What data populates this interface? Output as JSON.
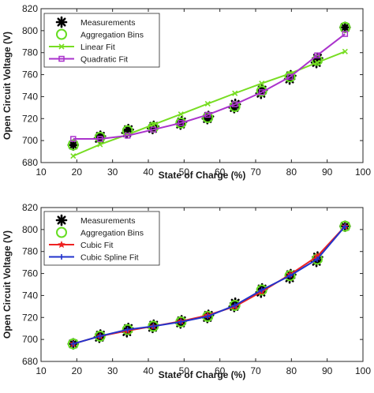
{
  "chart_data": [
    {
      "type": "line",
      "xlabel": "State of Charge (%)",
      "ylabel": "Open Circuit Voltage (V)",
      "xlim": [
        10,
        100
      ],
      "ylim": [
        680,
        820
      ],
      "xticks": [
        "10",
        "20",
        "30",
        "40",
        "50",
        "60",
        "70",
        "80",
        "90",
        "100"
      ],
      "yticks": [
        "680",
        "700",
        "720",
        "740",
        "760",
        "780",
        "800",
        "820"
      ],
      "grid": false,
      "legend": "top-left",
      "series": [
        {
          "name": "Measurements",
          "kind": "scatter",
          "marker": "asterisk",
          "color": "#000000",
          "x": [
            19,
            26.3,
            26.6,
            34,
            34.4,
            41.2,
            41.5,
            49,
            49.3,
            56.5,
            56.8,
            64,
            64.3,
            71.5,
            71.8,
            79.5,
            79.8,
            87,
            87.3,
            95
          ],
          "y": [
            696,
            702,
            704,
            707,
            710,
            711,
            713,
            715,
            717,
            720,
            722,
            730,
            733,
            743,
            746,
            756,
            759,
            771,
            775,
            803
          ]
        },
        {
          "name": "Aggregation Bins",
          "kind": "scatter",
          "marker": "circle",
          "color": "#66dd22",
          "x": [
            19,
            26.5,
            34.2,
            41.4,
            49.1,
            56.6,
            64.2,
            71.7,
            79.6,
            87.2,
            95
          ],
          "y": [
            696,
            703,
            709,
            712,
            716,
            721,
            731,
            745,
            758,
            773,
            803
          ]
        },
        {
          "name": "Linear Fit",
          "kind": "line",
          "marker": "x",
          "color": "#77dd22",
          "x": [
            19,
            26.5,
            34.2,
            41.4,
            49.1,
            56.6,
            64.2,
            71.7,
            79.6,
            87.2,
            95
          ],
          "y": [
            686,
            696.5,
            705.5,
            714.5,
            724,
            733.5,
            743,
            752,
            761,
            771,
            781
          ]
        },
        {
          "name": "Quadratic Fit",
          "kind": "line",
          "marker": "square",
          "color": "#aa33cc",
          "x": [
            19,
            26.5,
            34.2,
            41.4,
            49.1,
            56.6,
            64.2,
            71.7,
            79.6,
            87.2,
            95
          ],
          "y": [
            701.5,
            701.5,
            704.5,
            710,
            716,
            723.5,
            733,
            744,
            758,
            777.5,
            797
          ]
        }
      ]
    },
    {
      "type": "line",
      "xlabel": "State of Charge (%)",
      "ylabel": "Open Circuit Voltage (V)",
      "xlim": [
        10,
        100
      ],
      "ylim": [
        680,
        820
      ],
      "xticks": [
        "10",
        "20",
        "30",
        "40",
        "50",
        "60",
        "70",
        "80",
        "90",
        "100"
      ],
      "yticks": [
        "680",
        "700",
        "720",
        "740",
        "760",
        "780",
        "800",
        "820"
      ],
      "grid": false,
      "legend": "top-left",
      "series": [
        {
          "name": "Measurements",
          "kind": "scatter",
          "marker": "asterisk",
          "color": "#000000",
          "x": [
            19,
            26.3,
            26.6,
            34,
            34.4,
            41.2,
            41.5,
            49,
            49.3,
            56.5,
            56.8,
            64,
            64.3,
            71.5,
            71.8,
            79.5,
            79.8,
            87,
            87.3,
            95
          ],
          "y": [
            696,
            702,
            704,
            707,
            710,
            711,
            713,
            715,
            717,
            720,
            722,
            730,
            733,
            743,
            746,
            756,
            759,
            771,
            775,
            803
          ]
        },
        {
          "name": "Aggregation Bins",
          "kind": "scatter",
          "marker": "circle",
          "color": "#66dd22",
          "x": [
            19,
            26.5,
            34.2,
            41.4,
            49.1,
            56.6,
            64.2,
            71.7,
            79.6,
            87.2,
            95
          ],
          "y": [
            696,
            703,
            709,
            712,
            716,
            721,
            731,
            745,
            758,
            773,
            803
          ]
        },
        {
          "name": "Cubic Fit",
          "kind": "line",
          "marker": "star",
          "color": "#ee2222",
          "x": [
            19,
            26.5,
            34.2,
            41.4,
            49.1,
            56.6,
            64.2,
            71.7,
            79.6,
            87.2,
            95
          ],
          "y": [
            696,
            703,
            708,
            712,
            716.5,
            722,
            730,
            743.5,
            759,
            775.5,
            803
          ]
        },
        {
          "name": "Cubic Spline Fit",
          "kind": "line",
          "marker": "plus",
          "color": "#2233cc",
          "x": [
            19,
            26.5,
            34.2,
            41.4,
            49.1,
            56.6,
            64.2,
            71.7,
            79.6,
            87.2,
            95
          ],
          "y": [
            696,
            703,
            709,
            712,
            716,
            721,
            731,
            745,
            758,
            773,
            803
          ]
        }
      ]
    }
  ]
}
